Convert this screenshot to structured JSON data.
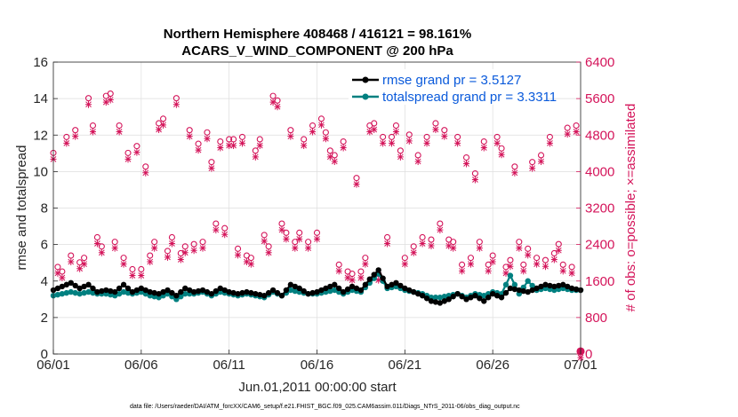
{
  "chart_data": {
    "type": "line",
    "title": "Northern Hemisphere 408468 / 416121 = 98.161%",
    "subtitle": "ACARS_V_WIND_COMPONENT @ 200 hPa",
    "xlabel": "Jun.01,2011 00:00:00 start",
    "ylabel": "rmse and totalspread",
    "ylabel_right": "# of obs: o=possible; ×=assimilated",
    "x_tick_labels": [
      "06/01",
      "06/06",
      "06/11",
      "06/16",
      "06/21",
      "06/26",
      "07/01"
    ],
    "x_range_days": [
      0,
      30
    ],
    "ylim": [
      0,
      16
    ],
    "y_ticks": [
      0,
      2,
      4,
      6,
      8,
      10,
      12,
      14,
      16
    ],
    "ylim_right": [
      0,
      6400
    ],
    "y_ticks_right": [
      0,
      800,
      1600,
      2400,
      3200,
      4000,
      4800,
      5600,
      6400
    ],
    "legend_position": "top-right",
    "footnote": "data file: /Users/raeder/DAI/ATM_forcXX/CAM6_setup/f.e21.FHIST_BGC.f09_025.CAM6assim.011/Diags_NTrS_2011-06/obs_diag_output.nc",
    "colors": {
      "rmse": "#000000",
      "spread": "#008080",
      "obs": "#d4145a",
      "legend_text": "#0a5adb"
    },
    "series": [
      {
        "name": "rmse grand pr = 3.5127",
        "key": "rmse",
        "anchors": [
          [
            0,
            3.5
          ],
          [
            0.5,
            3.7
          ],
          [
            1,
            3.9
          ],
          [
            1.5,
            3.6
          ],
          [
            2,
            3.8
          ],
          [
            2.5,
            3.4
          ],
          [
            3,
            3.5
          ],
          [
            3.5,
            3.4
          ],
          [
            4,
            3.8
          ],
          [
            4.5,
            3.4
          ],
          [
            5,
            3.6
          ],
          [
            5.5,
            3.4
          ],
          [
            6,
            3.3
          ],
          [
            6.5,
            3.5
          ],
          [
            7,
            3.2
          ],
          [
            7.5,
            3.6
          ],
          [
            8,
            3.4
          ],
          [
            8.5,
            3.5
          ],
          [
            9,
            3.3
          ],
          [
            9.5,
            3.6
          ],
          [
            10,
            3.4
          ],
          [
            10.5,
            3.3
          ],
          [
            11,
            3.4
          ],
          [
            11.5,
            3.3
          ],
          [
            12,
            3.2
          ],
          [
            12.5,
            3.5
          ],
          [
            13,
            3.2
          ],
          [
            13.5,
            3.8
          ],
          [
            14,
            3.6
          ],
          [
            14.5,
            3.3
          ],
          [
            15,
            3.4
          ],
          [
            15.5,
            3.6
          ],
          [
            16,
            3.8
          ],
          [
            16.5,
            3.4
          ],
          [
            17,
            3.7
          ],
          [
            17.5,
            3.5
          ],
          [
            18,
            4.1
          ],
          [
            18.5,
            4.6
          ],
          [
            19,
            3.7
          ],
          [
            19.5,
            3.9
          ],
          [
            20,
            3.6
          ],
          [
            20.5,
            3.4
          ],
          [
            21,
            3.2
          ],
          [
            21.5,
            2.9
          ],
          [
            22,
            2.8
          ],
          [
            22.5,
            3.0
          ],
          [
            23,
            3.3
          ],
          [
            23.5,
            3.0
          ],
          [
            24,
            3.2
          ],
          [
            24.5,
            2.9
          ],
          [
            25,
            3.3
          ],
          [
            25.5,
            3.1
          ],
          [
            26,
            3.6
          ],
          [
            26.5,
            3.5
          ],
          [
            27,
            3.4
          ],
          [
            27.5,
            3.6
          ],
          [
            28,
            3.8
          ],
          [
            28.5,
            3.7
          ],
          [
            29,
            3.8
          ],
          [
            29.5,
            3.6
          ],
          [
            30,
            3.5
          ]
        ]
      },
      {
        "name": "totalspread grand pr = 3.3311",
        "key": "spread",
        "anchors": [
          [
            0,
            3.2
          ],
          [
            0.5,
            3.3
          ],
          [
            1,
            3.4
          ],
          [
            1.5,
            3.3
          ],
          [
            2,
            3.4
          ],
          [
            2.5,
            3.3
          ],
          [
            3,
            3.3
          ],
          [
            3.5,
            3.2
          ],
          [
            4,
            3.4
          ],
          [
            4.5,
            3.3
          ],
          [
            5,
            3.4
          ],
          [
            5.5,
            3.2
          ],
          [
            6,
            3.1
          ],
          [
            6.5,
            3.3
          ],
          [
            7,
            3.0
          ],
          [
            7.5,
            3.3
          ],
          [
            8,
            3.3
          ],
          [
            8.5,
            3.4
          ],
          [
            9,
            3.2
          ],
          [
            9.5,
            3.4
          ],
          [
            10,
            3.3
          ],
          [
            10.5,
            3.2
          ],
          [
            11,
            3.3
          ],
          [
            11.5,
            3.2
          ],
          [
            12,
            3.1
          ],
          [
            12.5,
            3.4
          ],
          [
            13,
            3.2
          ],
          [
            13.5,
            3.5
          ],
          [
            14,
            3.4
          ],
          [
            14.5,
            3.3
          ],
          [
            15,
            3.3
          ],
          [
            15.5,
            3.4
          ],
          [
            16,
            3.5
          ],
          [
            16.5,
            3.3
          ],
          [
            17,
            3.5
          ],
          [
            17.5,
            3.4
          ],
          [
            18,
            3.9
          ],
          [
            18.5,
            4.4
          ],
          [
            19,
            3.6
          ],
          [
            19.5,
            3.7
          ],
          [
            20,
            3.5
          ],
          [
            20.5,
            3.4
          ],
          [
            21,
            3.3
          ],
          [
            21.5,
            3.1
          ],
          [
            22,
            3.1
          ],
          [
            22.5,
            3.2
          ],
          [
            23,
            3.3
          ],
          [
            23.5,
            3.1
          ],
          [
            24,
            3.3
          ],
          [
            24.5,
            3.2
          ],
          [
            25,
            3.4
          ],
          [
            25.5,
            3.3
          ],
          [
            26,
            4.3
          ],
          [
            26.5,
            3.3
          ],
          [
            27,
            4.0
          ],
          [
            27.5,
            3.5
          ],
          [
            28,
            3.6
          ],
          [
            28.5,
            3.5
          ],
          [
            29,
            3.6
          ],
          [
            29.5,
            3.5
          ],
          [
            30,
            3.5
          ]
        ]
      },
      {
        "name": "# of obs: o=possible",
        "key": "obs",
        "points": [
          [
            0,
            4350
          ],
          [
            0.25,
            1850
          ],
          [
            0.5,
            1750
          ],
          [
            0.75,
            4700
          ],
          [
            1,
            2100
          ],
          [
            1.25,
            4850
          ],
          [
            1.5,
            1950
          ],
          [
            1.75,
            2050
          ],
          [
            2,
            5550
          ],
          [
            2.25,
            4950
          ],
          [
            2.5,
            2500
          ],
          [
            2.75,
            2300
          ],
          [
            3,
            5600
          ],
          [
            3.25,
            5650
          ],
          [
            3.5,
            2400
          ],
          [
            3.75,
            4950
          ],
          [
            4,
            2050
          ],
          [
            4.25,
            4350
          ],
          [
            4.5,
            1800
          ],
          [
            4.75,
            4500
          ],
          [
            5,
            1800
          ],
          [
            5.25,
            4050
          ],
          [
            5.5,
            2100
          ],
          [
            5.75,
            2400
          ],
          [
            6,
            5000
          ],
          [
            6.25,
            5100
          ],
          [
            6.5,
            2200
          ],
          [
            6.75,
            2500
          ],
          [
            7,
            5550
          ],
          [
            7.25,
            2150
          ],
          [
            7.5,
            2300
          ],
          [
            7.75,
            4850
          ],
          [
            8,
            2350
          ],
          [
            8.25,
            4550
          ],
          [
            8.5,
            2400
          ],
          [
            8.75,
            4800
          ],
          [
            9,
            4150
          ],
          [
            9.25,
            2800
          ],
          [
            9.5,
            4600
          ],
          [
            9.75,
            2700
          ],
          [
            10,
            4650
          ],
          [
            10.25,
            4650
          ],
          [
            10.5,
            2250
          ],
          [
            10.75,
            4700
          ],
          [
            11,
            2100
          ],
          [
            11.25,
            2050
          ],
          [
            11.5,
            4400
          ],
          [
            11.75,
            4650
          ],
          [
            12,
            2550
          ],
          [
            12.25,
            2300
          ],
          [
            12.5,
            5600
          ],
          [
            12.75,
            5500
          ],
          [
            13,
            2800
          ],
          [
            13.25,
            2600
          ],
          [
            13.5,
            4850
          ],
          [
            13.75,
            2400
          ],
          [
            14,
            2600
          ],
          [
            14.25,
            4650
          ],
          [
            14.5,
            2400
          ],
          [
            14.75,
            4950
          ],
          [
            15,
            2600
          ],
          [
            15.25,
            5100
          ],
          [
            15.5,
            4800
          ],
          [
            15.75,
            4400
          ],
          [
            16,
            4300
          ],
          [
            16.25,
            1900
          ],
          [
            16.5,
            4600
          ],
          [
            16.75,
            1750
          ],
          [
            17,
            1700
          ],
          [
            17.25,
            3800
          ],
          [
            17.5,
            1750
          ],
          [
            17.75,
            2050
          ],
          [
            18,
            4950
          ],
          [
            18.25,
            5000
          ],
          [
            18.5,
            1700
          ],
          [
            18.75,
            4700
          ],
          [
            19,
            2500
          ],
          [
            19.25,
            4700
          ],
          [
            19.5,
            4950
          ],
          [
            19.75,
            4400
          ],
          [
            20,
            2050
          ],
          [
            20.25,
            4750
          ],
          [
            20.5,
            2300
          ],
          [
            20.75,
            4300
          ],
          [
            21,
            2500
          ],
          [
            21.25,
            4700
          ],
          [
            21.5,
            2450
          ],
          [
            21.75,
            5000
          ],
          [
            22,
            2800
          ],
          [
            22.25,
            4850
          ],
          [
            22.5,
            2450
          ],
          [
            22.75,
            2400
          ],
          [
            23,
            4700
          ],
          [
            23.25,
            1900
          ],
          [
            23.5,
            4250
          ],
          [
            23.75,
            2050
          ],
          [
            24,
            3900
          ],
          [
            24.25,
            2400
          ],
          [
            24.5,
            4600
          ],
          [
            24.75,
            1900
          ],
          [
            25,
            2100
          ],
          [
            25.25,
            4700
          ],
          [
            25.5,
            4450
          ],
          [
            25.75,
            1850
          ],
          [
            26,
            2000
          ],
          [
            26.25,
            4050
          ],
          [
            26.5,
            2400
          ],
          [
            26.75,
            1900
          ],
          [
            27,
            2250
          ],
          [
            27.25,
            4150
          ],
          [
            27.5,
            2050
          ],
          [
            27.75,
            4300
          ],
          [
            28,
            2000
          ],
          [
            28.25,
            4700
          ],
          [
            28.5,
            2150
          ],
          [
            28.75,
            2350
          ],
          [
            29,
            1900
          ],
          [
            29.25,
            4900
          ],
          [
            29.5,
            1850
          ],
          [
            29.75,
            4950
          ],
          [
            30,
            0
          ]
        ]
      }
    ]
  }
}
